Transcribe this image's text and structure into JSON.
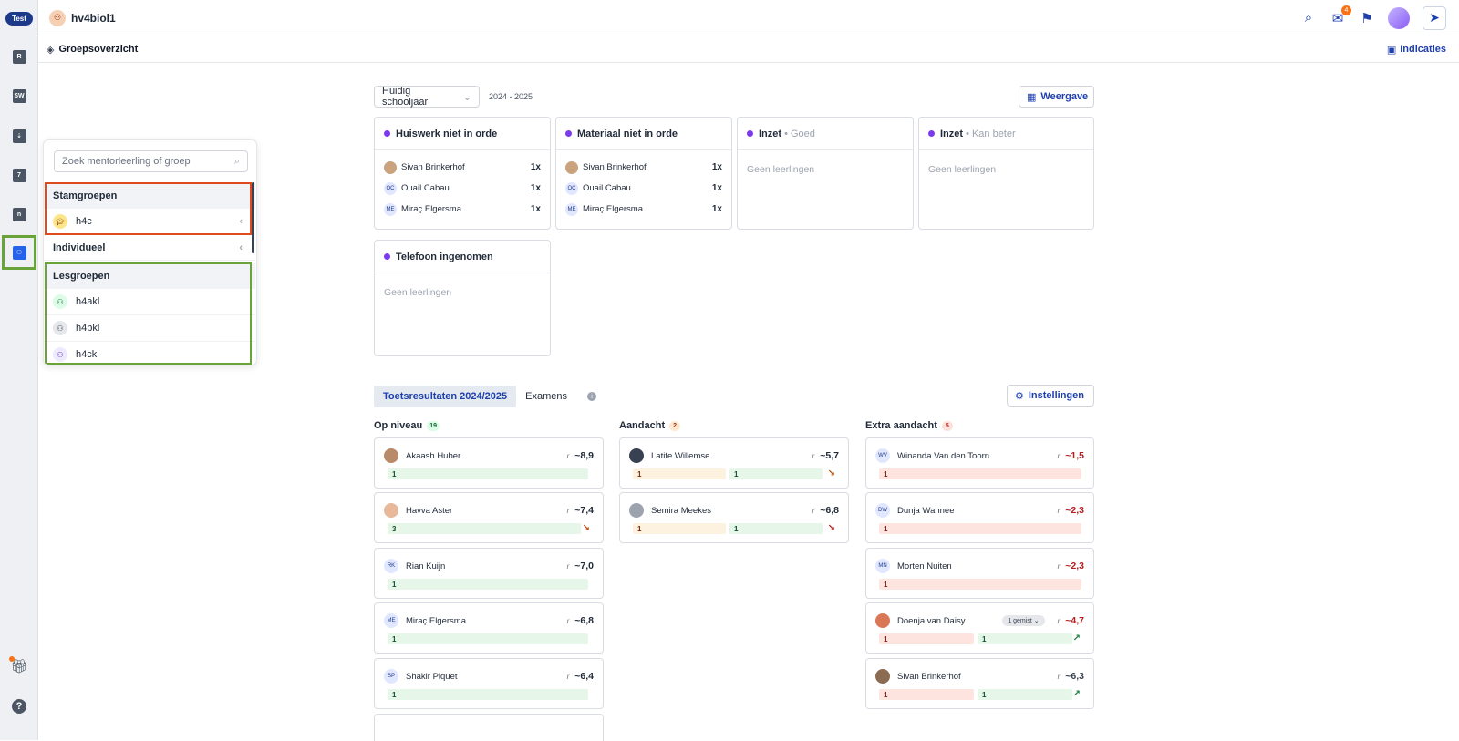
{
  "rail": {
    "test_badge": "Test",
    "items": [
      {
        "name": "rail-item-r",
        "glyph": "R"
      },
      {
        "name": "rail-item-sw",
        "glyph": "SW"
      },
      {
        "name": "rail-item-agenda",
        "glyph": "⇣"
      },
      {
        "name": "rail-item-grades",
        "glyph": "7"
      },
      {
        "name": "rail-item-n",
        "glyph": "n"
      },
      {
        "name": "rail-item-groups",
        "glyph": "⚇"
      }
    ]
  },
  "topbar": {
    "title": "hv4biol1",
    "mail_count": "4"
  },
  "subbar": {
    "title": "Groepsoverzicht",
    "indicaties_label": "Indicaties"
  },
  "panel": {
    "search_placeholder": "Zoek mentorleerling of groep",
    "stamgroepen_label": "Stamgroepen",
    "stamgroep_item": "h4c",
    "individueel_label": "Individueel",
    "lesgroepen_label": "Lesgroepen",
    "lesgroepen": [
      "h4akl",
      "h4bkl",
      "h4ckl"
    ]
  },
  "main": {
    "year_select": "Huidig schooljaar",
    "year_range": "2024 - 2025",
    "weergave_label": "Weergave",
    "cards": {
      "huiswerk": {
        "title": "Huiswerk niet in orde",
        "rows": [
          {
            "initials": "",
            "name": "Sivan Brinkerhof",
            "value": "1x"
          },
          {
            "initials": "OC",
            "name": "Ouail Cabau",
            "value": "1x"
          },
          {
            "initials": "ME",
            "name": "Miraç Elgersma",
            "value": "1x"
          }
        ]
      },
      "materiaal": {
        "title": "Materiaal niet in orde",
        "rows": [
          {
            "initials": "",
            "name": "Sivan Brinkerhof",
            "value": "1x"
          },
          {
            "initials": "OC",
            "name": "Ouail Cabau",
            "value": "1x"
          },
          {
            "initials": "ME",
            "name": "Miraç Elgersma",
            "value": "1x"
          }
        ]
      },
      "inzet_goed": {
        "title": "Inzet",
        "sub": "• Goed",
        "empty": "Geen leerlingen"
      },
      "inzet_beter": {
        "title": "Inzet",
        "sub": "• Kan beter",
        "empty": "Geen leerlingen"
      },
      "telefoon": {
        "title": "Telefoon ingenomen",
        "empty": "Geen leerlingen"
      }
    },
    "tabs": {
      "toets": "Toetsresultaten 2024/2025",
      "examens": "Examens"
    },
    "instellingen_label": "Instellingen",
    "columns": {
      "op_niveau": {
        "label": "Op niveau",
        "count": "19"
      },
      "aandacht": {
        "label": "Aandacht",
        "count": "2"
      },
      "extra": {
        "label": "Extra aandacht",
        "count": "5"
      }
    },
    "r_label": "r",
    "students_op": [
      {
        "initials": "",
        "name": "Akaash Huber",
        "score": "~8,9",
        "bar1": "1",
        "trend": ""
      },
      {
        "initials": "",
        "name": "Havva Aster",
        "score": "~7,4",
        "bar1": "3",
        "trend": "↘"
      },
      {
        "initials": "RK",
        "name": "Rian Kuijn",
        "score": "~7,0",
        "bar1": "1",
        "trend": ""
      },
      {
        "initials": "ME",
        "name": "Miraç Elgersma",
        "score": "~6,8",
        "bar1": "1",
        "trend": ""
      },
      {
        "initials": "SP",
        "name": "Shakir Piquet",
        "score": "~6,4",
        "bar1": "1",
        "trend": ""
      }
    ],
    "students_aandacht": [
      {
        "initials": "",
        "name": "Latife Willemse",
        "score": "~5,7",
        "bar1": "1",
        "bar2": "1",
        "trend": "↘"
      },
      {
        "initials": "",
        "name": "Semira Meekes",
        "score": "~6,8",
        "bar1": "1",
        "bar2": "1",
        "trend": "↘"
      }
    ],
    "students_extra": [
      {
        "initials": "WV",
        "name": "Winanda Van den Toorn",
        "score": "~1,5",
        "bar1": "1"
      },
      {
        "initials": "DW",
        "name": "Dunja Wannee",
        "score": "~2,3",
        "bar1": "1"
      },
      {
        "initials": "MN",
        "name": "Morten Nuiten",
        "score": "~2,3",
        "bar1": "1"
      },
      {
        "initials": "",
        "name": "Doenja van Daisy",
        "pill": "1 gemist",
        "score": "~4,7",
        "bar1": "1",
        "bar2": "1",
        "trend": "↗"
      },
      {
        "initials": "",
        "name": "Sivan Brinkerhof",
        "score": "~6,3",
        "bar1": "1",
        "bar2": "1",
        "trend": "↗"
      }
    ]
  }
}
